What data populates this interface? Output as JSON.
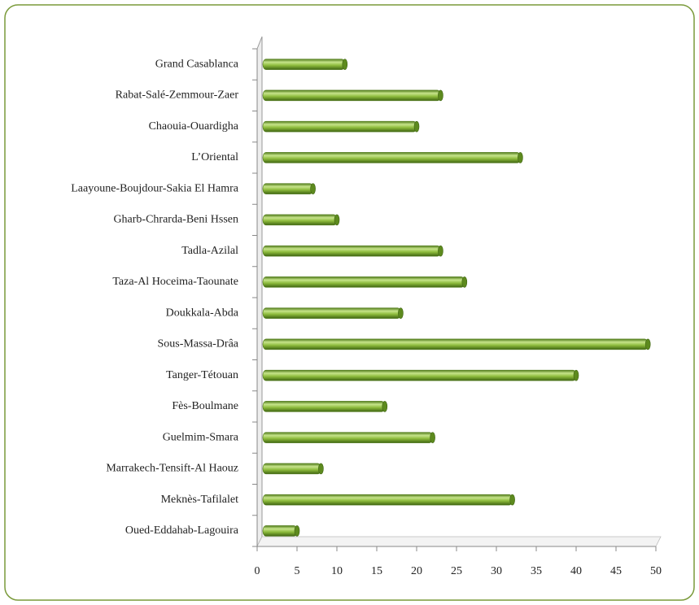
{
  "chart_data": {
    "type": "bar",
    "orientation": "horizontal",
    "categories": [
      "Grand Casablanca",
      "Rabat-Salé-Zemmour-Zaer",
      "Chaouia-Ouardigha",
      "L’Oriental",
      "Laayoune-Boujdour-Sakia El Hamra",
      "Gharb-Chrarda-Beni Hssen",
      "Tadla-Azilal",
      "Taza-Al Hoceima-Taounate",
      "Doukkala-Abda",
      "Sous-Massa-Drâa",
      "Tanger-Tétouan",
      "Fès-Boulmane",
      "Guelmim-Smara",
      "Marrakech-Tensift-Al Haouz",
      "Meknès-Tafilalet",
      "Oued-Eddahab-Lagouira"
    ],
    "values": [
      11,
      23,
      20,
      33,
      7,
      10,
      23,
      26,
      18,
      49,
      40,
      16,
      22,
      8,
      32,
      5
    ],
    "color": "#8dbb3c",
    "xlim": [
      0,
      50
    ],
    "xticks": [
      0,
      5,
      10,
      15,
      20,
      25,
      30,
      35,
      40,
      45,
      50
    ],
    "grid": false
  }
}
